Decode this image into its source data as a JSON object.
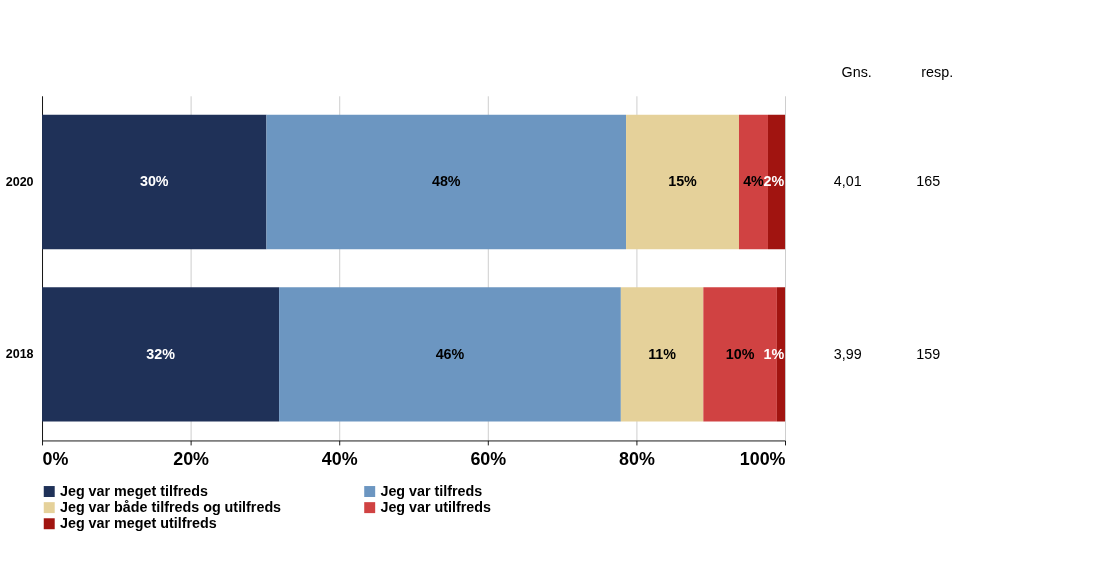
{
  "chart_data": {
    "type": "bar",
    "orientation": "horizontal",
    "stacked": true,
    "categories": [
      "2020",
      "2018"
    ],
    "series": [
      {
        "name": "Jeg var meget tilfreds",
        "color": "#1f3158",
        "values": [
          30.2,
          31.9
        ],
        "value_labels": [
          "30%",
          "32%"
        ]
      },
      {
        "name": "Jeg var tilfreds",
        "color": "#6c96c1",
        "values": [
          48.4,
          46.0
        ],
        "value_labels": [
          "48%",
          "46%"
        ]
      },
      {
        "name": "Jeg var både tilfreds og utilfreds",
        "color": "#e5d19a",
        "values": [
          15.2,
          11.1
        ],
        "value_labels": [
          "15%",
          "11%"
        ]
      },
      {
        "name": "Jeg var utilfreds",
        "color": "#d04242",
        "values": [
          3.9,
          9.9
        ],
        "value_labels": [
          "4%",
          "10%"
        ]
      },
      {
        "name": "Jeg var meget utilfreds",
        "color": "#a11410",
        "values": [
          2.3,
          1.1
        ],
        "value_labels": [
          "2%",
          "1%"
        ]
      }
    ],
    "xlim": [
      0,
      100
    ],
    "xticks": [
      {
        "value": 0,
        "label": "0%"
      },
      {
        "value": 20,
        "label": "20%"
      },
      {
        "value": 40,
        "label": "40%"
      },
      {
        "value": 60,
        "label": "60%"
      },
      {
        "value": 80,
        "label": "80%"
      },
      {
        "value": 100,
        "label": "100%"
      }
    ],
    "grid": "x",
    "legend": "bottom",
    "annotations": [
      "Gns.",
      "resp.",
      "4,01",
      "165",
      "3,99",
      "159"
    ]
  }
}
